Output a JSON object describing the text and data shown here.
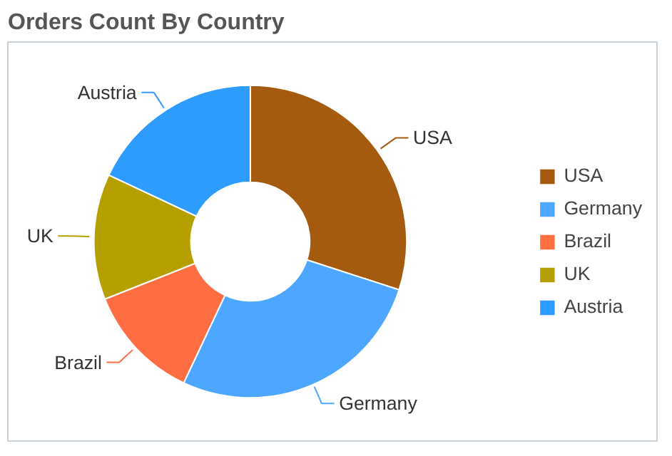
{
  "chart_data": {
    "type": "donut",
    "title": "Orders Count By Country",
    "categories": [
      "USA",
      "Germany",
      "Brazil",
      "UK",
      "Austria"
    ],
    "values": [
      30,
      27,
      12,
      13,
      18
    ],
    "colors": [
      "#a55b0f",
      "#4da6ff",
      "#ff6d42",
      "#b5a000",
      "#2e9cff"
    ],
    "legend": "right"
  }
}
